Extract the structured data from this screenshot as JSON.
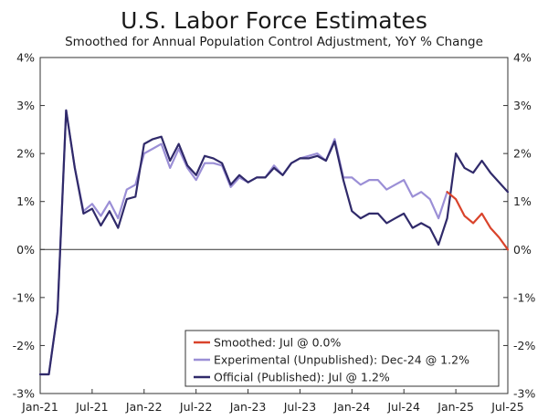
{
  "title": "U.S. Labor Force Estimates",
  "subtitle": "Smoothed for Annual Population Control Adjustment, YoY % Change",
  "chart_data": {
    "type": "line",
    "ylim": [
      -3,
      4
    ],
    "y_ticks": [
      -3,
      -2,
      -1,
      0,
      1,
      2,
      3,
      4
    ],
    "y_tick_labels": [
      "-3%",
      "-2%",
      "-1%",
      "0%",
      "1%",
      "2%",
      "3%",
      "4%"
    ],
    "x_start": "2021-01",
    "x_end": "2025-07",
    "x_tick_labels": [
      "Jan-21",
      "Jul-21",
      "Jan-22",
      "Jul-22",
      "Jan-23",
      "Jul-23",
      "Jan-24",
      "Jul-24",
      "Jan-25",
      "Jul-25"
    ],
    "x_tick_dates": [
      "2021-01",
      "2021-07",
      "2022-01",
      "2022-07",
      "2023-01",
      "2023-07",
      "2024-01",
      "2024-07",
      "2025-01",
      "2025-07"
    ],
    "grid": false,
    "zero_line": true,
    "right_axis": true,
    "legend_position": "bottom-right",
    "series": [
      {
        "name": "Experimental (Unpublished): Dec-24 @ 1.2%",
        "color": "#9b8fd6",
        "x": [
          "2021-01",
          "2021-02",
          "2021-03",
          "2021-04",
          "2021-05",
          "2021-06",
          "2021-07",
          "2021-08",
          "2021-09",
          "2021-10",
          "2021-11",
          "2021-12",
          "2022-01",
          "2022-02",
          "2022-03",
          "2022-04",
          "2022-05",
          "2022-06",
          "2022-07",
          "2022-08",
          "2022-09",
          "2022-10",
          "2022-11",
          "2022-12",
          "2023-01",
          "2023-02",
          "2023-03",
          "2023-04",
          "2023-05",
          "2023-06",
          "2023-07",
          "2023-08",
          "2023-09",
          "2023-10",
          "2023-11",
          "2023-12",
          "2024-01",
          "2024-02",
          "2024-03",
          "2024-04",
          "2024-05",
          "2024-06",
          "2024-07",
          "2024-08",
          "2024-09",
          "2024-10",
          "2024-11",
          "2024-12"
        ],
        "y": [
          -2.6,
          -2.6,
          -1.3,
          2.9,
          1.7,
          0.8,
          0.95,
          0.7,
          1.0,
          0.65,
          1.25,
          1.35,
          2.0,
          2.1,
          2.2,
          1.7,
          2.1,
          1.7,
          1.45,
          1.8,
          1.8,
          1.75,
          1.3,
          1.5,
          1.4,
          1.5,
          1.5,
          1.75,
          1.55,
          1.8,
          1.9,
          1.95,
          2.0,
          1.85,
          2.3,
          1.5,
          1.5,
          1.35,
          1.45,
          1.45,
          1.25,
          1.35,
          1.45,
          1.1,
          1.2,
          1.05,
          0.65,
          1.2
        ]
      },
      {
        "name": "Official (Published): Jul @ 1.2%",
        "color": "#302a6a",
        "x": [
          "2021-01",
          "2021-02",
          "2021-03",
          "2021-04",
          "2021-05",
          "2021-06",
          "2021-07",
          "2021-08",
          "2021-09",
          "2021-10",
          "2021-11",
          "2021-12",
          "2022-01",
          "2022-02",
          "2022-03",
          "2022-04",
          "2022-05",
          "2022-06",
          "2022-07",
          "2022-08",
          "2022-09",
          "2022-10",
          "2022-11",
          "2022-12",
          "2023-01",
          "2023-02",
          "2023-03",
          "2023-04",
          "2023-05",
          "2023-06",
          "2023-07",
          "2023-08",
          "2023-09",
          "2023-10",
          "2023-11",
          "2023-12",
          "2024-01",
          "2024-02",
          "2024-03",
          "2024-04",
          "2024-05",
          "2024-06",
          "2024-07",
          "2024-08",
          "2024-09",
          "2024-10",
          "2024-11",
          "2024-12",
          "2025-01",
          "2025-02",
          "2025-03",
          "2025-04",
          "2025-05",
          "2025-06",
          "2025-07"
        ],
        "y": [
          -2.6,
          -2.6,
          -1.3,
          2.9,
          1.7,
          0.75,
          0.85,
          0.5,
          0.8,
          0.45,
          1.05,
          1.1,
          2.2,
          2.3,
          2.35,
          1.85,
          2.2,
          1.75,
          1.55,
          1.95,
          1.9,
          1.8,
          1.35,
          1.55,
          1.4,
          1.5,
          1.5,
          1.7,
          1.55,
          1.8,
          1.9,
          1.9,
          1.95,
          1.85,
          2.25,
          1.45,
          0.8,
          0.65,
          0.75,
          0.75,
          0.55,
          0.65,
          0.75,
          0.45,
          0.55,
          0.45,
          0.1,
          0.65,
          2.0,
          1.7,
          1.6,
          1.85,
          1.6,
          1.4,
          1.2
        ]
      },
      {
        "name": "Smoothed: Jul @ 0.0%",
        "color": "#d9432b",
        "x": [
          "2024-12",
          "2025-01",
          "2025-02",
          "2025-03",
          "2025-04",
          "2025-05",
          "2025-06",
          "2025-07"
        ],
        "y": [
          1.2,
          1.05,
          0.7,
          0.55,
          0.75,
          0.45,
          0.25,
          0.0
        ]
      }
    ],
    "legend": [
      "Smoothed: Jul @ 0.0%",
      "Experimental (Unpublished): Dec-24 @ 1.2%",
      "Official (Published): Jul @ 1.2%"
    ]
  }
}
